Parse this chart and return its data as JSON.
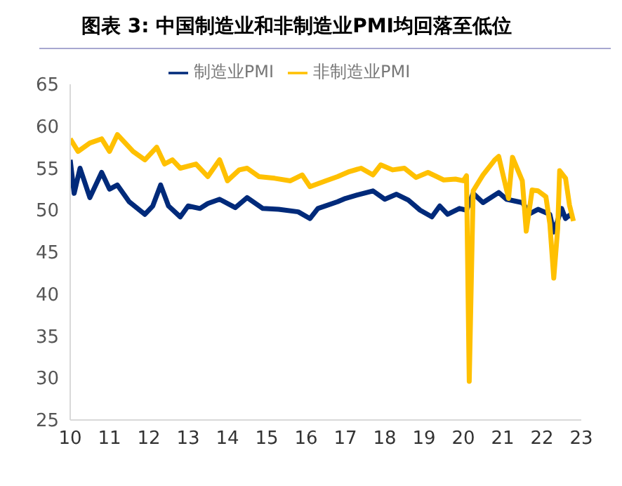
{
  "chart_data": {
    "type": "line",
    "title": "图表 3: 中国制造业和非制造业PMI均回落至低位",
    "legend": "top",
    "grid": false,
    "marker": "none",
    "line_style": "solid",
    "xlim": [
      2010,
      2023
    ],
    "xticks": [
      {
        "value": 2010,
        "label": "10"
      },
      {
        "value": 2011,
        "label": "11"
      },
      {
        "value": 2012,
        "label": "12"
      },
      {
        "value": 2013,
        "label": "13"
      },
      {
        "value": 2014,
        "label": "14"
      },
      {
        "value": 2015,
        "label": "15"
      },
      {
        "value": 2016,
        "label": "16"
      },
      {
        "value": 2017,
        "label": "17"
      },
      {
        "value": 2018,
        "label": "18"
      },
      {
        "value": 2019,
        "label": "19"
      },
      {
        "value": 2020,
        "label": "20"
      },
      {
        "value": 2021,
        "label": "21"
      },
      {
        "value": 2022,
        "label": "22"
      },
      {
        "value": 2023,
        "label": "23"
      }
    ],
    "ylim": [
      25,
      65
    ],
    "yticks": [
      25,
      30,
      35,
      40,
      45,
      50,
      55,
      60,
      65
    ],
    "series": [
      {
        "name": "制造业PMI",
        "color": "#002a7a",
        "x": [
          2010.0,
          2010.1,
          2010.25,
          2010.5,
          2010.8,
          2011.0,
          2011.2,
          2011.5,
          2011.9,
          2012.1,
          2012.3,
          2012.5,
          2012.8,
          2013.0,
          2013.3,
          2013.5,
          2013.8,
          2014.2,
          2014.5,
          2014.9,
          2015.3,
          2015.8,
          2016.1,
          2016.3,
          2016.8,
          2017.0,
          2017.3,
          2017.7,
          2018.0,
          2018.3,
          2018.6,
          2018.9,
          2019.2,
          2019.4,
          2019.6,
          2019.9,
          2020.08,
          2020.25,
          2020.5,
          2020.9,
          2021.1,
          2021.5,
          2021.7,
          2021.9,
          2022.2,
          2022.3,
          2022.5,
          2022.6,
          2022.7,
          2022.8
        ],
        "values": [
          56,
          52,
          55,
          51.5,
          54.5,
          52.5,
          53,
          51,
          49.5,
          50.5,
          53,
          50.5,
          49.2,
          50.5,
          50.2,
          50.8,
          51.3,
          50.3,
          51.5,
          50.2,
          50.1,
          49.8,
          49,
          50.2,
          51,
          51.4,
          51.8,
          52.3,
          51.3,
          51.9,
          51.2,
          50,
          49.2,
          50.5,
          49.5,
          50.2,
          50,
          52,
          50.9,
          52.1,
          51.3,
          50.9,
          49.6,
          50.1,
          49.5,
          47.4,
          50.2,
          49,
          49.4,
          49.2
        ]
      },
      {
        "name": "非制造业PMI",
        "color": "#ffc000",
        "x": [
          2010.0,
          2010.2,
          2010.5,
          2010.8,
          2011.0,
          2011.2,
          2011.4,
          2011.6,
          2011.9,
          2012.2,
          2012.4,
          2012.6,
          2012.8,
          2013.2,
          2013.5,
          2013.8,
          2014.0,
          2014.3,
          2014.5,
          2014.8,
          2015.2,
          2015.6,
          2015.9,
          2016.1,
          2016.5,
          2016.8,
          2017.1,
          2017.4,
          2017.7,
          2017.9,
          2018.2,
          2018.5,
          2018.8,
          2019.1,
          2019.5,
          2019.8,
          2020.0,
          2020.08,
          2020.15,
          2020.25,
          2020.5,
          2020.8,
          2020.9,
          2021.1,
          2021.15,
          2021.25,
          2021.5,
          2021.6,
          2021.75,
          2021.9,
          2022.1,
          2022.2,
          2022.3,
          2022.4,
          2022.45,
          2022.6,
          2022.7,
          2022.8
        ],
        "values": [
          58.5,
          57,
          58,
          58.5,
          57,
          59,
          58,
          57,
          56,
          57.5,
          55.5,
          56,
          55,
          55.5,
          54,
          56,
          53.5,
          54.8,
          55,
          54,
          53.8,
          53.5,
          54.2,
          52.8,
          53.5,
          54,
          54.6,
          55,
          54.2,
          55.4,
          54.8,
          55,
          53.9,
          54.5,
          53.6,
          53.7,
          53.5,
          54.1,
          29.6,
          52.3,
          54.2,
          56,
          56.4,
          52.4,
          51.4,
          56.3,
          53.5,
          47.5,
          52.4,
          52.3,
          51.6,
          48.4,
          41.9,
          47.8,
          54.7,
          53.8,
          50.6,
          48.7
        ]
      }
    ]
  }
}
